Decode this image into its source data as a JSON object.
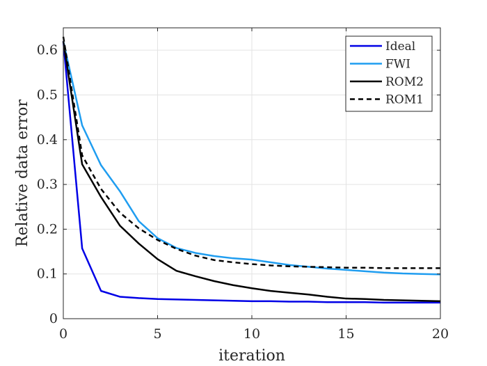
{
  "chart_data": {
    "type": "line",
    "title": "",
    "xlabel": "iteration",
    "ylabel": "Relative data error",
    "xlim": [
      0,
      20
    ],
    "ylim": [
      0,
      0.65
    ],
    "xticks": [
      0,
      5,
      10,
      15,
      20
    ],
    "yticks": [
      0,
      0.1,
      0.2,
      0.3,
      0.4,
      0.5,
      0.6
    ],
    "xtick_labels": [
      "0",
      "5",
      "10",
      "15",
      "20"
    ],
    "ytick_labels": [
      "0",
      "0.1",
      "0.2",
      "0.3",
      "0.4",
      "0.5",
      "0.6"
    ],
    "grid": true,
    "legend_position": "top-right",
    "series": [
      {
        "name": "Ideal",
        "color": "#0000e6",
        "dash": "solid",
        "x": [
          0,
          1,
          2,
          3,
          4,
          5,
          6,
          7,
          8,
          9,
          10,
          11,
          12,
          13,
          14,
          15,
          16,
          17,
          18,
          19,
          20
        ],
        "y": [
          0.62,
          0.157,
          0.062,
          0.049,
          0.046,
          0.044,
          0.043,
          0.042,
          0.041,
          0.04,
          0.039,
          0.039,
          0.038,
          0.038,
          0.037,
          0.037,
          0.037,
          0.036,
          0.036,
          0.036,
          0.036
        ]
      },
      {
        "name": "FWI",
        "color": "#1f9df0",
        "dash": "solid",
        "x": [
          0,
          1,
          2,
          3,
          4,
          5,
          6,
          7,
          8,
          9,
          10,
          11,
          12,
          13,
          14,
          15,
          16,
          17,
          18,
          19,
          20
        ],
        "y": [
          0.62,
          0.432,
          0.343,
          0.285,
          0.218,
          0.18,
          0.158,
          0.147,
          0.14,
          0.135,
          0.132,
          0.126,
          0.12,
          0.116,
          0.112,
          0.109,
          0.106,
          0.103,
          0.101,
          0.1,
          0.099
        ]
      },
      {
        "name": "ROM2",
        "color": "#000000",
        "dash": "solid",
        "x": [
          0,
          1,
          2,
          3,
          4,
          5,
          6,
          7,
          8,
          9,
          10,
          11,
          12,
          13,
          14,
          15,
          16,
          17,
          18,
          19,
          20
        ],
        "y": [
          0.62,
          0.345,
          0.272,
          0.208,
          0.168,
          0.133,
          0.107,
          0.095,
          0.084,
          0.075,
          0.068,
          0.062,
          0.058,
          0.054,
          0.049,
          0.045,
          0.044,
          0.042,
          0.041,
          0.04,
          0.039
        ]
      },
      {
        "name": "ROM1",
        "color": "#000000",
        "dash": "dashed",
        "x": [
          0,
          1,
          2,
          3,
          4,
          5,
          6,
          7,
          8,
          9,
          10,
          11,
          12,
          13,
          14,
          15,
          16,
          17,
          18,
          19,
          20
        ],
        "y": [
          0.63,
          0.365,
          0.29,
          0.237,
          0.202,
          0.176,
          0.156,
          0.141,
          0.131,
          0.126,
          0.122,
          0.119,
          0.117,
          0.116,
          0.115,
          0.114,
          0.114,
          0.113,
          0.113,
          0.113,
          0.113
        ]
      }
    ]
  }
}
